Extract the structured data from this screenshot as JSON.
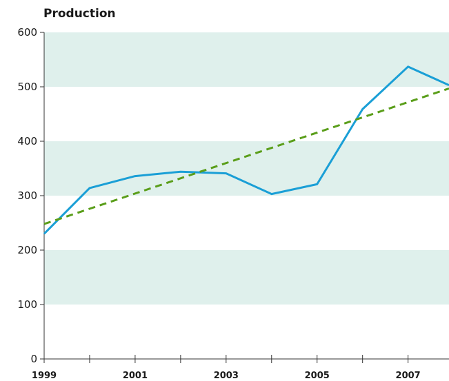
{
  "chart_data": {
    "type": "line",
    "ylabel": "Production",
    "xlim": [
      1999,
      2007.9
    ],
    "ylim": [
      0,
      600
    ],
    "yticks": [
      0,
      100,
      200,
      300,
      400,
      500,
      600
    ],
    "xtick_labels": [
      "1999",
      "2001",
      "2003",
      "2005",
      "2007"
    ],
    "x_minor_ticks": [
      2000,
      2002,
      2004,
      2006
    ],
    "grid": "alternating horizontal bands",
    "series": [
      {
        "style": "solid",
        "color": "#1a9fd6",
        "x": [
          1999,
          2000,
          2001,
          2002,
          2003,
          2004,
          2005,
          2006,
          2007,
          2007.9
        ],
        "y": [
          230,
          314,
          336,
          344,
          341,
          303,
          321,
          459,
          537,
          503
        ]
      },
      {
        "style": "dashed",
        "role": "trend",
        "color": "#5a9e1a",
        "x": [
          1999,
          2007.9
        ],
        "y": [
          248,
          497
        ]
      }
    ],
    "colors": {
      "band": "#dff0ec",
      "axis": "#333333"
    }
  }
}
